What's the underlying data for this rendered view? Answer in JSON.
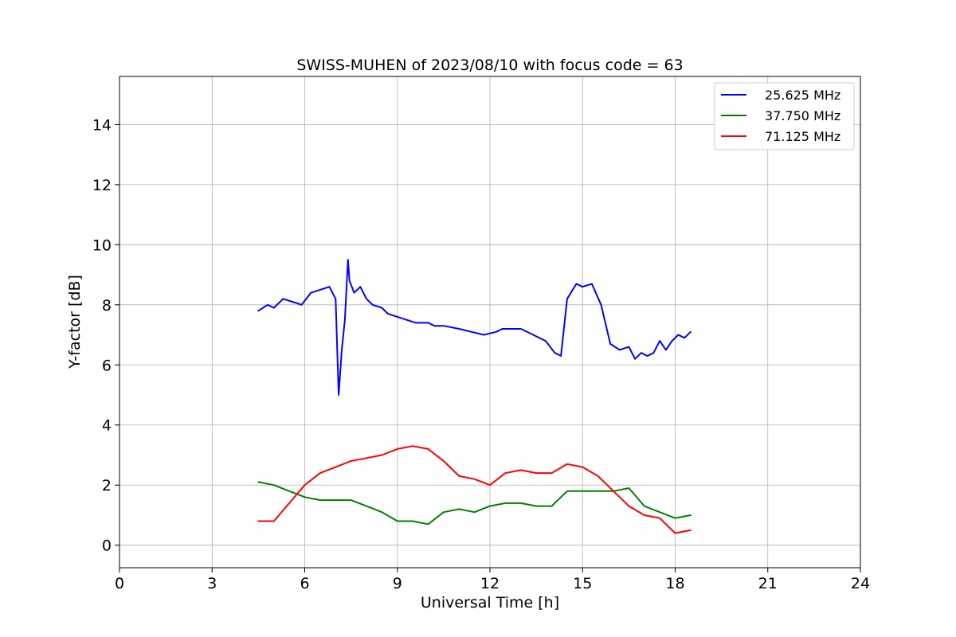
{
  "chart_data": {
    "type": "line",
    "title": "SWISS-MUHEN of 2023/08/10 with focus code = 63",
    "xlabel": "Universal Time [h]",
    "ylabel": "Y-factor [dB]",
    "xlim": [
      0,
      24
    ],
    "ylim": [
      -0.75,
      15.6
    ],
    "xticks": [
      0,
      3,
      6,
      9,
      12,
      15,
      18,
      21,
      24
    ],
    "yticks": [
      0,
      2,
      4,
      6,
      8,
      10,
      12,
      14
    ],
    "grid": true,
    "legend_position": "top-right",
    "series": [
      {
        "name": "25.625 MHz",
        "color": "#0000ff",
        "x": [
          4.5,
          4.8,
          5.0,
          5.3,
          5.6,
          5.9,
          6.2,
          6.5,
          6.8,
          7.0,
          7.1,
          7.2,
          7.3,
          7.4,
          7.45,
          7.6,
          7.8,
          8.0,
          8.2,
          8.5,
          8.7,
          9.0,
          9.3,
          9.6,
          10.0,
          10.2,
          10.5,
          11.0,
          11.4,
          11.8,
          12.2,
          12.4,
          12.6,
          13.0,
          13.4,
          13.8,
          14.1,
          14.3,
          14.5,
          14.8,
          15.0,
          15.3,
          15.6,
          15.9,
          16.2,
          16.5,
          16.7,
          16.9,
          17.1,
          17.3,
          17.5,
          17.7,
          17.9,
          18.1,
          18.3,
          18.5
        ],
        "y": [
          7.8,
          8.0,
          7.9,
          8.2,
          8.1,
          8.0,
          8.4,
          8.5,
          8.6,
          8.2,
          5.0,
          6.5,
          7.5,
          9.5,
          8.8,
          8.4,
          8.6,
          8.2,
          8.0,
          7.9,
          7.7,
          7.6,
          7.5,
          7.4,
          7.4,
          7.3,
          7.3,
          7.2,
          7.1,
          7.0,
          7.1,
          7.2,
          7.2,
          7.2,
          7.0,
          6.8,
          6.4,
          6.3,
          8.2,
          8.7,
          8.6,
          8.7,
          8.0,
          6.7,
          6.5,
          6.6,
          6.2,
          6.4,
          6.3,
          6.4,
          6.8,
          6.5,
          6.8,
          7.0,
          6.9,
          7.1
        ]
      },
      {
        "name": "37.750 MHz",
        "color": "#008000",
        "x": [
          4.5,
          5.0,
          5.5,
          6.0,
          6.5,
          7.0,
          7.5,
          8.0,
          8.5,
          9.0,
          9.5,
          10.0,
          10.5,
          11.0,
          11.5,
          12.0,
          12.5,
          13.0,
          13.5,
          14.0,
          14.5,
          15.0,
          15.5,
          16.0,
          16.5,
          17.0,
          17.5,
          18.0,
          18.5
        ],
        "y": [
          2.1,
          2.0,
          1.8,
          1.6,
          1.5,
          1.5,
          1.5,
          1.3,
          1.1,
          0.8,
          0.8,
          0.7,
          1.1,
          1.2,
          1.1,
          1.3,
          1.4,
          1.4,
          1.3,
          1.3,
          1.8,
          1.8,
          1.8,
          1.8,
          1.9,
          1.3,
          1.1,
          0.9,
          1.0
        ]
      },
      {
        "name": "71.125 MHz",
        "color": "#ff0000",
        "x": [
          4.5,
          5.0,
          5.5,
          6.0,
          6.5,
          7.0,
          7.5,
          8.0,
          8.5,
          9.0,
          9.5,
          10.0,
          10.5,
          11.0,
          11.5,
          12.0,
          12.5,
          13.0,
          13.5,
          14.0,
          14.5,
          15.0,
          15.5,
          16.0,
          16.5,
          17.0,
          17.5,
          18.0,
          18.5
        ],
        "y": [
          0.8,
          0.8,
          1.4,
          2.0,
          2.4,
          2.6,
          2.8,
          2.9,
          3.0,
          3.2,
          3.3,
          3.2,
          2.8,
          2.3,
          2.2,
          2.0,
          2.4,
          2.5,
          2.4,
          2.4,
          2.7,
          2.6,
          2.3,
          1.8,
          1.3,
          1.0,
          0.9,
          0.4,
          0.5
        ]
      }
    ]
  }
}
